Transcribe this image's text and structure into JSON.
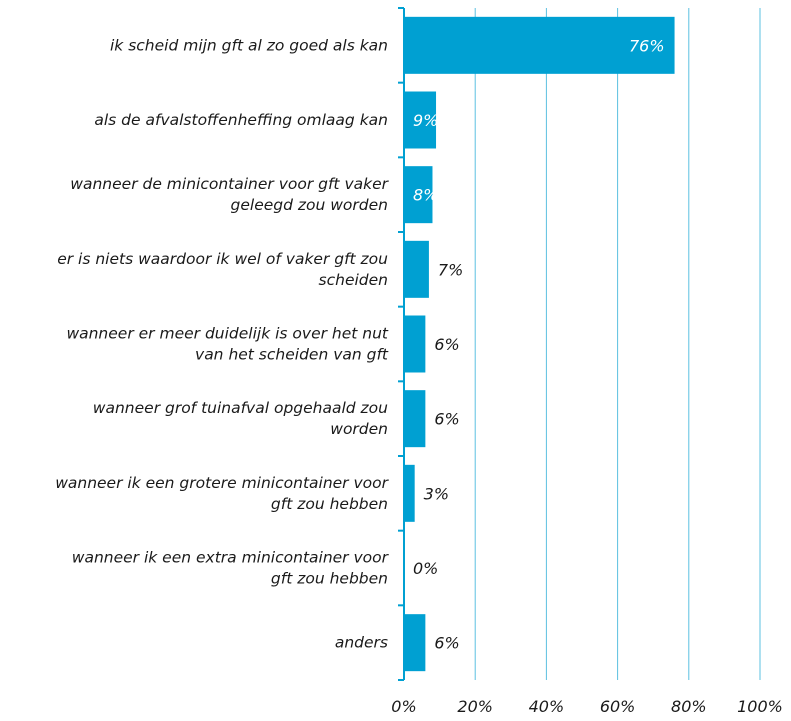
{
  "chart_data": {
    "type": "bar",
    "orientation": "horizontal",
    "categories": [
      "ik scheid mijn gft al zo goed als kan",
      "als de afvalstoffenheffing omlaag kan",
      "wanneer de minicontainer voor gft vaker geleegd zou worden",
      "er is niets waardoor ik wel of vaker gft zou scheiden",
      "wanneer er meer duidelijk is over het nut van het scheiden van gft",
      "wanneer grof tuinafval opgehaald zou worden",
      "wanneer ik een grotere minicontainer voor gft zou hebben",
      "wanneer ik een extra minicontainer voor gft zou hebben",
      "anders"
    ],
    "category_lines": [
      [
        "ik scheid mijn gft al zo goed als kan"
      ],
      [
        "als de afvalstoffenheffing omlaag kan"
      ],
      [
        "wanneer de minicontainer voor gft vaker",
        "geleegd zou worden"
      ],
      [
        "er is niets waardoor ik wel of vaker gft zou",
        "scheiden"
      ],
      [
        "wanneer er meer duidelijk is over het nut",
        "van het scheiden van gft"
      ],
      [
        "wanneer grof tuinafval opgehaald zou",
        "worden"
      ],
      [
        "wanneer ik een grotere minicontainer voor",
        "gft zou hebben"
      ],
      [
        "wanneer ik een extra minicontainer voor",
        "gft zou hebben"
      ],
      [
        "anders"
      ]
    ],
    "values": [
      76,
      9,
      8,
      7,
      6,
      6,
      3,
      0,
      6
    ],
    "data_labels": [
      "76%",
      "9%",
      "8%",
      "7%",
      "6%",
      "6%",
      "3%",
      "0%",
      "6%"
    ],
    "xlim": [
      0,
      100
    ],
    "x_ticks": [
      0,
      20,
      40,
      60,
      80,
      100
    ],
    "x_tick_labels": [
      "0%",
      "20%",
      "40%",
      "60%",
      "80%",
      "100%"
    ],
    "grid": "vertical",
    "colors": {
      "bar": "#00A0D2",
      "grid": "#5BC0E0",
      "axis": "#00A0D2",
      "label_inside": "#ffffff",
      "label_outside": "#1a1a1a"
    }
  }
}
